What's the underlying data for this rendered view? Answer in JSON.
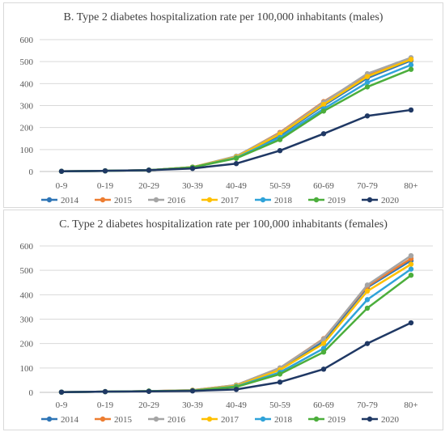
{
  "colors": {
    "2014": "#2e75b6",
    "2015": "#ed7d31",
    "2016": "#a5a5a5",
    "2017": "#ffc000",
    "2018": "#2fa3d9",
    "2019": "#4cae3c",
    "2020": "#1f3864",
    "grid": "#d9d9d9",
    "axis": "#bfbfbf"
  },
  "chart_data": [
    {
      "type": "line",
      "title": "B. Type 2 diabetes hospitalization rate per 100,000 inhabitants (males)",
      "xlabel": "",
      "ylabel": "",
      "ylim": [
        0,
        600
      ],
      "yticks": [
        "0",
        "100",
        "200",
        "300",
        "400",
        "500",
        "600"
      ],
      "grid": true,
      "legend": "bottom",
      "categories": [
        "0-9",
        "0-19",
        "20-29",
        "30-39",
        "40-49",
        "50-59",
        "60-69",
        "70-79",
        "80+"
      ],
      "series": [
        {
          "name": "2014",
          "values": [
            1,
            3,
            6,
            20,
            65,
            165,
            300,
            425,
            505
          ]
        },
        {
          "name": "2015",
          "values": [
            1,
            3,
            6,
            20,
            68,
            178,
            318,
            440,
            510
          ]
        },
        {
          "name": "2016",
          "values": [
            1,
            3,
            6,
            20,
            70,
            175,
            315,
            445,
            518
          ]
        },
        {
          "name": "2017",
          "values": [
            1,
            3,
            6,
            20,
            66,
            170,
            305,
            432,
            510
          ]
        },
        {
          "name": "2018",
          "values": [
            1,
            3,
            6,
            19,
            62,
            155,
            285,
            405,
            485
          ]
        },
        {
          "name": "2019",
          "values": [
            1,
            3,
            6,
            19,
            60,
            145,
            275,
            385,
            465
          ]
        },
        {
          "name": "2020",
          "values": [
            1,
            3,
            6,
            14,
            36,
            95,
            172,
            253,
            280
          ]
        }
      ]
    },
    {
      "type": "line",
      "title": "C. Type 2 diabetes hospitalization rate per 100,000 inhabitants (females)",
      "xlabel": "",
      "ylabel": "",
      "ylim": [
        0,
        600
      ],
      "yticks": [
        "0",
        "100",
        "200",
        "300",
        "400",
        "500",
        "600"
      ],
      "grid": true,
      "legend": "bottom",
      "categories": [
        "0-9",
        "0-19",
        "20-29",
        "30-39",
        "40-49",
        "50-59",
        "60-69",
        "70-79",
        "80+"
      ],
      "series": [
        {
          "name": "2014",
          "values": [
            1,
            3,
            5,
            8,
            28,
            95,
            210,
            430,
            540
          ]
        },
        {
          "name": "2015",
          "values": [
            1,
            3,
            5,
            9,
            30,
            100,
            220,
            435,
            548
          ]
        },
        {
          "name": "2016",
          "values": [
            1,
            3,
            5,
            9,
            30,
            100,
            218,
            440,
            560
          ]
        },
        {
          "name": "2017",
          "values": [
            1,
            3,
            5,
            8,
            27,
            92,
            200,
            415,
            525
          ]
        },
        {
          "name": "2018",
          "values": [
            1,
            3,
            5,
            7,
            24,
            82,
            180,
            380,
            505
          ]
        },
        {
          "name": "2019",
          "values": [
            1,
            3,
            5,
            7,
            22,
            75,
            165,
            345,
            480
          ]
        },
        {
          "name": "2020",
          "values": [
            1,
            3,
            4,
            6,
            12,
            42,
            95,
            200,
            285
          ]
        }
      ]
    }
  ]
}
